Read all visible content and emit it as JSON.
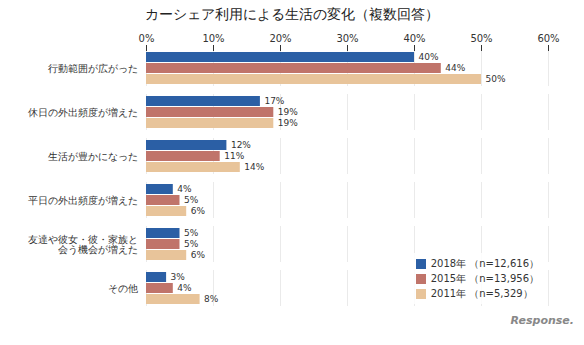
{
  "chart_data": {
    "type": "bar",
    "orientation": "horizontal",
    "title": "カーシェア利用による生活の変化（複数回答）",
    "categories": [
      "行動範囲が広がった",
      "休日の外出頻度が増えた",
      "生活が豊かになった",
      "平日の外出頻度が増えた",
      "友達や彼女・彼・家族と\n会う機会が増えた",
      "その他"
    ],
    "series": [
      {
        "name": "2018年 （n=12,616）",
        "color": "#2B5FA5",
        "values": [
          40,
          17,
          12,
          4,
          5,
          3
        ],
        "value_labels": [
          "40%",
          "17%",
          "12%",
          "4%",
          "5%",
          "3%"
        ]
      },
      {
        "name": "2015年 （n=13,956）",
        "color": "#C0746A",
        "values": [
          44,
          19,
          11,
          5,
          5,
          4
        ],
        "value_labels": [
          "44%",
          "19%",
          "11%",
          "5%",
          "5%",
          "4%"
        ]
      },
      {
        "name": "2011年 （n=5,329）",
        "color": "#E8C49A",
        "values": [
          50,
          19,
          14,
          6,
          6,
          8
        ],
        "value_labels": [
          "50%",
          "19%",
          "14%",
          "6%",
          "6%",
          "8%"
        ]
      }
    ],
    "xlim": [
      0,
      60
    ],
    "xticks": [
      {
        "value": 0,
        "label": "0%"
      },
      {
        "value": 10,
        "label": "10%"
      },
      {
        "value": 20,
        "label": "20%"
      },
      {
        "value": 30,
        "label": "30%"
      },
      {
        "value": 40,
        "label": "40%"
      },
      {
        "value": 50,
        "label": "50%"
      },
      {
        "value": 60,
        "label": "60%"
      }
    ],
    "grid": true,
    "legend": "lower right",
    "data_labels": true,
    "annotations": [
      "Response."
    ]
  }
}
